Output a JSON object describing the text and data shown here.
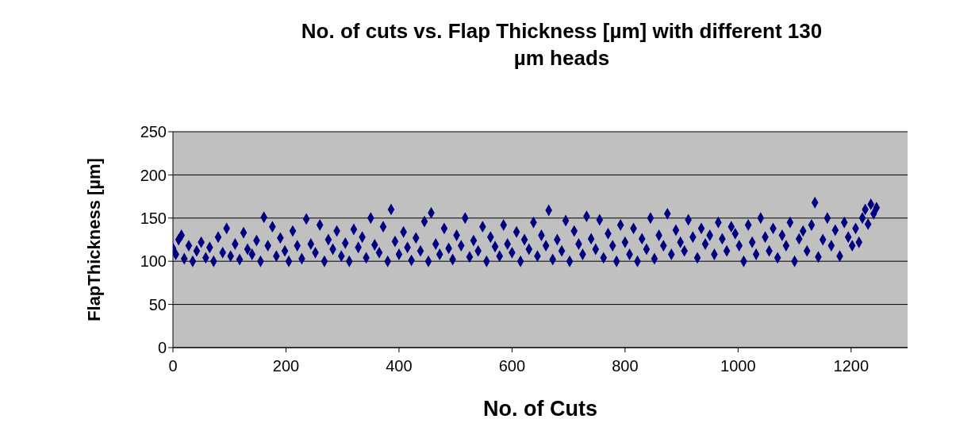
{
  "chart_data": {
    "type": "scatter",
    "title": "No. of cuts vs. Flap Thickness [µm] with different 130 µm heads",
    "xlabel": "No. of Cuts",
    "ylabel": "FlapThickness [µm]",
    "xlim": [
      0,
      1300
    ],
    "xticks": [
      0,
      200,
      400,
      600,
      800,
      1000,
      1200
    ],
    "ylim": [
      0,
      250
    ],
    "yticks": [
      0,
      50,
      100,
      150,
      200,
      250
    ],
    "grid": "y",
    "marker": "diamond",
    "series": [
      {
        "color": "#000080",
        "x": [
          0,
          5,
          10,
          15,
          20,
          28,
          35,
          42,
          50,
          58,
          65,
          72,
          80,
          88,
          95,
          102,
          110,
          118,
          125,
          132,
          140,
          148,
          155,
          161,
          168,
          176,
          183,
          190,
          198,
          205,
          212,
          220,
          228,
          236,
          244,
          252,
          260,
          268,
          275,
          283,
          290,
          298,
          305,
          312,
          320,
          328,
          335,
          342,
          350,
          357,
          365,
          372,
          380,
          386,
          393,
          400,
          408,
          415,
          422,
          430,
          438,
          445,
          452,
          457,
          465,
          472,
          480,
          488,
          495,
          502,
          510,
          517,
          525,
          532,
          540,
          548,
          555,
          562,
          570,
          578,
          585,
          592,
          600,
          608,
          615,
          622,
          630,
          638,
          645,
          652,
          660,
          665,
          672,
          680,
          688,
          695,
          702,
          710,
          718,
          725,
          732,
          740,
          748,
          755,
          762,
          770,
          778,
          785,
          792,
          800,
          808,
          815,
          822,
          830,
          838,
          845,
          852,
          860,
          868,
          875,
          882,
          890,
          898,
          905,
          912,
          920,
          928,
          935,
          942,
          950,
          958,
          965,
          972,
          980,
          988,
          995,
          1002,
          1010,
          1018,
          1025,
          1032,
          1040,
          1048,
          1055,
          1062,
          1070,
          1078,
          1085,
          1092,
          1100,
          1108,
          1115,
          1122,
          1130,
          1136,
          1142,
          1150,
          1158,
          1165,
          1172,
          1180,
          1188,
          1195,
          1202,
          1208,
          1214,
          1220,
          1225,
          1230,
          1235,
          1240,
          1245
        ],
        "values": [
          115,
          108,
          125,
          130,
          103,
          118,
          100,
          112,
          122,
          104,
          116,
          100,
          128,
          110,
          138,
          106,
          120,
          102,
          133,
          114,
          108,
          124,
          100,
          151,
          118,
          140,
          106,
          127,
          112,
          100,
          135,
          118,
          103,
          149,
          120,
          110,
          142,
          100,
          125,
          114,
          135,
          106,
          121,
          100,
          137,
          116,
          128,
          104,
          150,
          119,
          110,
          140,
          100,
          160,
          123,
          108,
          134,
          116,
          101,
          127,
          112,
          146,
          100,
          156,
          120,
          108,
          138,
          115,
          102,
          130,
          118,
          150,
          105,
          124,
          112,
          140,
          100,
          128,
          117,
          106,
          142,
          120,
          110,
          134,
          100,
          125,
          114,
          145,
          106,
          130,
          118,
          159,
          102,
          125,
          112,
          147,
          100,
          135,
          120,
          108,
          152,
          126,
          114,
          148,
          104,
          132,
          118,
          100,
          142,
          122,
          108,
          138,
          100,
          126,
          114,
          150,
          103,
          130,
          118,
          155,
          108,
          136,
          122,
          112,
          148,
          128,
          104,
          138,
          120,
          130,
          108,
          145,
          126,
          112,
          140,
          132,
          118,
          100,
          142,
          122,
          108,
          150,
          128,
          112,
          138,
          104,
          130,
          118,
          145,
          100,
          126,
          135,
          112,
          142,
          168,
          105,
          125,
          150,
          118,
          136,
          106,
          145,
          128,
          118,
          138,
          122,
          150,
          160,
          143,
          166,
          155,
          162
        ]
      }
    ]
  }
}
